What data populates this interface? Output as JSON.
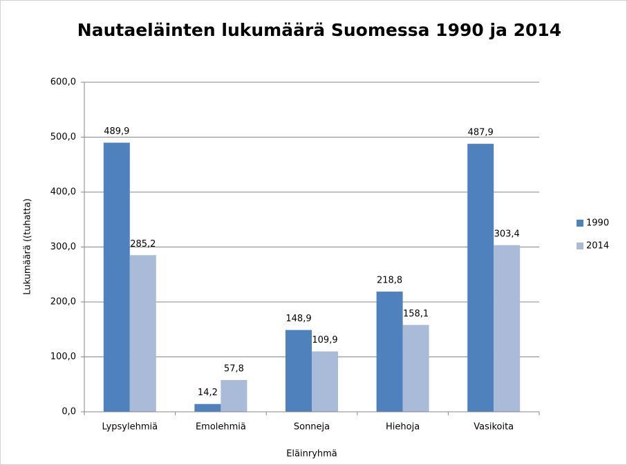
{
  "chart_data": {
    "type": "bar",
    "title": "Nautaeläinten lukumäärä Suomessa 1990 ja 2014",
    "x_label": "Eläinryhmä",
    "y_label": "Lukumäärä ((tuhatta)",
    "categories": [
      "Lypsylehmiä",
      "Emolehmiä",
      "Sonneja",
      "Hiehoja",
      "Vasikoita"
    ],
    "series": [
      {
        "name": "1990",
        "color": "#4f81bd",
        "values": [
          489.9,
          14.2,
          148.9,
          218.8,
          487.9
        ],
        "value_labels": [
          "489,9",
          "14,2",
          "148,9",
          "218,8",
          "487,9"
        ]
      },
      {
        "name": "2014",
        "color": "#aabad9",
        "values": [
          285.2,
          57.8,
          109.9,
          158.1,
          303.4
        ],
        "value_labels": [
          "285,2",
          "57,8",
          "109,9",
          "158,1",
          "303,4"
        ]
      }
    ],
    "ylim": [
      0,
      600
    ],
    "yticks": [
      {
        "value": 0,
        "label": "0,0"
      },
      {
        "value": 100,
        "label": "100,0"
      },
      {
        "value": 200,
        "label": "200,0"
      },
      {
        "value": 300,
        "label": "300,0"
      },
      {
        "value": 400,
        "label": "400,0"
      },
      {
        "value": 500,
        "label": "500,0"
      },
      {
        "value": 600,
        "label": "600,0"
      }
    ],
    "grid": true,
    "legend": "right"
  }
}
